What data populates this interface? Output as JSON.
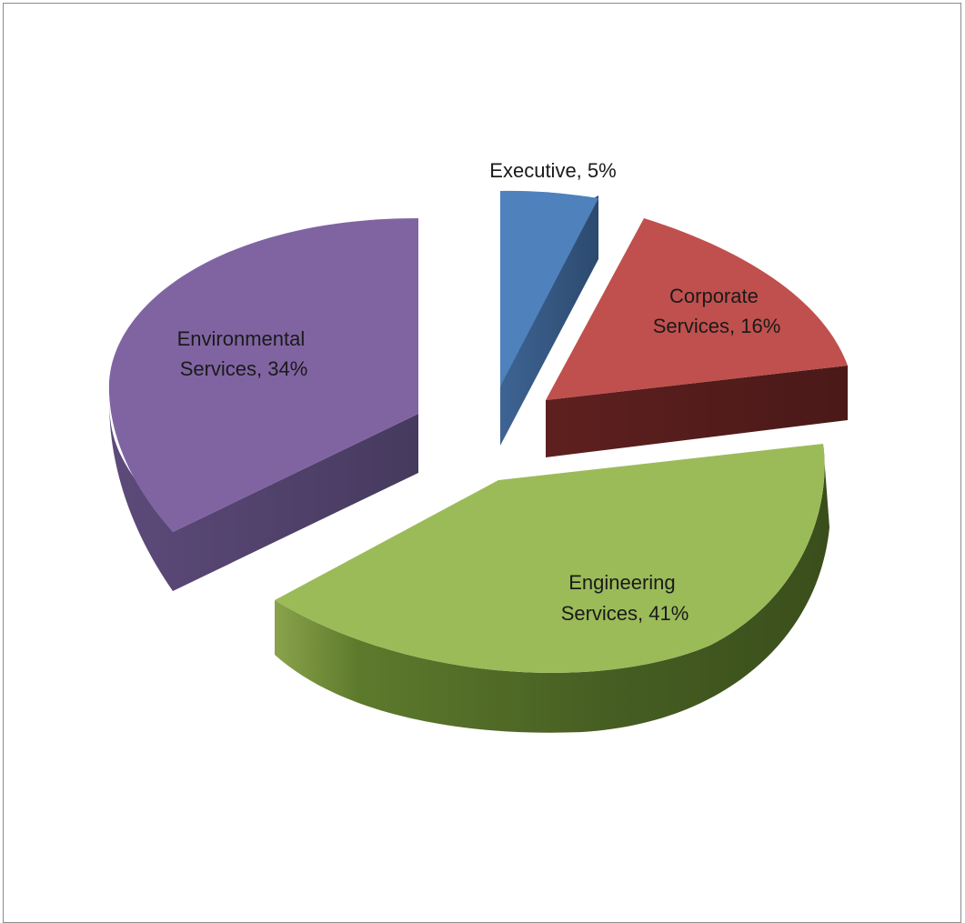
{
  "chart_data": {
    "type": "pie",
    "style": "3d-exploded",
    "title": "",
    "slices": [
      {
        "label_line1": "Executive, 5%",
        "label_line2": "",
        "name": "Executive",
        "value": 5,
        "color": "#4f81bd",
        "side_color": "#385d8a"
      },
      {
        "label_line1": "Corporate",
        "label_line2": "Services, 16%",
        "name": "Corporate Services",
        "value": 16,
        "color": "#c0504d",
        "side_color": "#5a1f1e"
      },
      {
        "label_line1": "Engineering",
        "label_line2": "Services, 41%",
        "name": "Engineering Services",
        "value": 41,
        "color": "#9bbb59",
        "side_color": "#4a5c26"
      },
      {
        "label_line1": "Environmental",
        "label_line2": "Services, 34%",
        "name": "Environmental Services",
        "value": 34,
        "color": "#8064a2",
        "side_color": "#4d3d63"
      }
    ],
    "legend": "none",
    "data_labels": "on-slice"
  }
}
